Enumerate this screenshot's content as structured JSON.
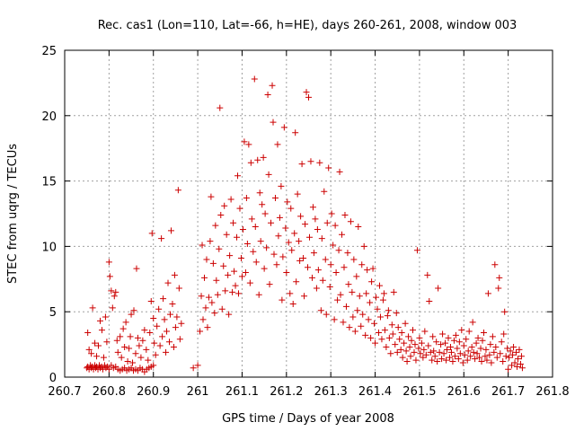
{
  "chart_data": {
    "type": "scatter",
    "title": "Rec. cas1 (Lon=110, Lat=-66, h=HE), days 260-261, 2008, window 003",
    "xlabel": "GPS time / Days of year 2008",
    "ylabel": "STEC from uqrg / TECUs",
    "xlim": [
      260.7,
      261.8
    ],
    "ylim": [
      0,
      25
    ],
    "xticks": [
      260.7,
      260.8,
      260.9,
      261.0,
      261.1,
      261.2,
      261.3,
      261.4,
      261.5,
      261.6,
      261.7,
      261.8
    ],
    "xtick_labels": [
      "260.7",
      "260.8",
      "260.9",
      "261",
      "261.1",
      "261.2",
      "261.3",
      "261.4",
      "261.5",
      "261.6",
      "261.7",
      "261.8"
    ],
    "yticks": [
      0,
      5,
      10,
      15,
      20,
      25
    ],
    "ytick_labels": [
      "0",
      "5",
      "10",
      "15",
      "20",
      "25"
    ],
    "grid": true,
    "color": "#cc0000",
    "marker": "plus",
    "points": [
      [
        260.75,
        0.7
      ],
      [
        260.752,
        0.8
      ],
      [
        260.755,
        0.6
      ],
      [
        260.758,
        0.9
      ],
      [
        260.76,
        0.7
      ],
      [
        260.762,
        0.8
      ],
      [
        260.765,
        0.6
      ],
      [
        260.768,
        0.9
      ],
      [
        260.77,
        0.7
      ],
      [
        260.772,
        0.8
      ],
      [
        260.775,
        0.6
      ],
      [
        260.778,
        0.9
      ],
      [
        260.78,
        0.7
      ],
      [
        260.783,
        0.8
      ],
      [
        260.786,
        0.6
      ],
      [
        260.79,
        0.9
      ],
      [
        260.793,
        0.7
      ],
      [
        260.796,
        0.8
      ],
      [
        260.8,
        0.6
      ],
      [
        260.805,
        0.9
      ],
      [
        260.81,
        0.7
      ],
      [
        260.815,
        0.8
      ],
      [
        260.82,
        0.6
      ],
      [
        260.825,
        0.5
      ],
      [
        260.83,
        0.6
      ],
      [
        260.835,
        0.7
      ],
      [
        260.84,
        0.5
      ],
      [
        260.845,
        0.6
      ],
      [
        260.85,
        0.7
      ],
      [
        260.855,
        0.5
      ],
      [
        260.86,
        0.6
      ],
      [
        260.865,
        0.5
      ],
      [
        260.87,
        0.7
      ],
      [
        260.875,
        0.6
      ],
      [
        260.88,
        0.4
      ],
      [
        260.885,
        0.6
      ],
      [
        260.89,
        0.7
      ],
      [
        260.895,
        0.8
      ],
      [
        260.9,
        0.9
      ],
      [
        260.752,
        3.4
      ],
      [
        260.755,
        2.1
      ],
      [
        260.76,
        1.8
      ],
      [
        260.763,
        5.3
      ],
      [
        260.768,
        2.6
      ],
      [
        260.772,
        1.6
      ],
      [
        260.776,
        2.4
      ],
      [
        260.78,
        4.3
      ],
      [
        260.784,
        3.6
      ],
      [
        260.788,
        1.5
      ],
      [
        260.792,
        4.6
      ],
      [
        260.795,
        2.7
      ],
      [
        260.8,
        8.8
      ],
      [
        260.802,
        7.7
      ],
      [
        260.805,
        6.6
      ],
      [
        260.808,
        5.3
      ],
      [
        260.812,
        6.2
      ],
      [
        260.815,
        6.5
      ],
      [
        260.818,
        2.8
      ],
      [
        260.82,
        1.9
      ],
      [
        260.825,
        3.1
      ],
      [
        260.828,
        1.5
      ],
      [
        260.832,
        3.7
      ],
      [
        260.835,
        2.3
      ],
      [
        260.838,
        4.2
      ],
      [
        260.842,
        1.2
      ],
      [
        260.845,
        2.2
      ],
      [
        260.848,
        3.1
      ],
      [
        260.85,
        4.8
      ],
      [
        260.853,
        1.1
      ],
      [
        260.856,
        5.1
      ],
      [
        260.86,
        1.8
      ],
      [
        260.862,
        8.3
      ],
      [
        260.865,
        3.0
      ],
      [
        260.868,
        2.4
      ],
      [
        260.872,
        1.5
      ],
      [
        260.876,
        2.8
      ],
      [
        260.88,
        3.6
      ],
      [
        260.884,
        2.1
      ],
      [
        260.888,
        1.3
      ],
      [
        260.892,
        3.4
      ],
      [
        260.895,
        5.8
      ],
      [
        260.897,
        11.0
      ],
      [
        260.9,
        4.5
      ],
      [
        260.902,
        2.6
      ],
      [
        260.905,
        1.7
      ],
      [
        260.908,
        3.9
      ],
      [
        260.912,
        5.2
      ],
      [
        260.915,
        2.4
      ],
      [
        260.918,
        10.6
      ],
      [
        260.92,
        3.1
      ],
      [
        260.922,
        6.0
      ],
      [
        260.925,
        4.4
      ],
      [
        260.928,
        1.9
      ],
      [
        260.93,
        3.5
      ],
      [
        260.933,
        7.2
      ],
      [
        260.936,
        2.7
      ],
      [
        260.938,
        4.8
      ],
      [
        260.94,
        11.2
      ],
      [
        260.943,
        5.6
      ],
      [
        260.946,
        2.3
      ],
      [
        260.948,
        7.8
      ],
      [
        260.95,
        3.8
      ],
      [
        260.953,
        4.6
      ],
      [
        260.956,
        14.3
      ],
      [
        260.958,
        6.8
      ],
      [
        260.96,
        2.9
      ],
      [
        260.963,
        4.1
      ],
      [
        260.99,
        0.7
      ],
      [
        261.0,
        0.9
      ],
      [
        261.005,
        3.5
      ],
      [
        261.008,
        6.2
      ],
      [
        261.01,
        10.1
      ],
      [
        261.012,
        4.4
      ],
      [
        261.015,
        7.6
      ],
      [
        261.018,
        5.3
      ],
      [
        261.02,
        9.0
      ],
      [
        261.022,
        3.8
      ],
      [
        261.025,
        6.1
      ],
      [
        261.028,
        10.4
      ],
      [
        261.03,
        13.8
      ],
      [
        261.032,
        5.7
      ],
      [
        261.035,
        8.7
      ],
      [
        261.038,
        4.9
      ],
      [
        261.04,
        11.6
      ],
      [
        261.042,
        7.4
      ],
      [
        261.045,
        6.3
      ],
      [
        261.048,
        9.8
      ],
      [
        261.05,
        20.6
      ],
      [
        261.052,
        12.4
      ],
      [
        261.055,
        5.2
      ],
      [
        261.058,
        8.5
      ],
      [
        261.06,
        13.1
      ],
      [
        261.062,
        6.6
      ],
      [
        261.065,
        10.9
      ],
      [
        261.068,
        7.8
      ],
      [
        261.07,
        4.8
      ],
      [
        261.072,
        9.3
      ],
      [
        261.075,
        13.6
      ],
      [
        261.078,
        6.5
      ],
      [
        261.08,
        11.8
      ],
      [
        261.082,
        8.1
      ],
      [
        261.085,
        7.0
      ],
      [
        261.088,
        10.7
      ],
      [
        261.09,
        15.4
      ],
      [
        261.092,
        6.4
      ],
      [
        261.095,
        12.9
      ],
      [
        261.098,
        9.1
      ],
      [
        261.1,
        7.7
      ],
      [
        261.102,
        11.3
      ],
      [
        261.105,
        18.0
      ],
      [
        261.108,
        8.0
      ],
      [
        261.11,
        13.7
      ],
      [
        261.112,
        10.2
      ],
      [
        261.115,
        17.8
      ],
      [
        261.118,
        7.2
      ],
      [
        261.12,
        16.4
      ],
      [
        261.122,
        12.1
      ],
      [
        261.125,
        9.6
      ],
      [
        261.128,
        22.8
      ],
      [
        261.13,
        11.5
      ],
      [
        261.132,
        8.8
      ],
      [
        261.135,
        16.6
      ],
      [
        261.138,
        6.3
      ],
      [
        261.14,
        14.1
      ],
      [
        261.142,
        10.4
      ],
      [
        261.145,
        13.2
      ],
      [
        261.148,
        16.8
      ],
      [
        261.15,
        8.3
      ],
      [
        261.152,
        12.5
      ],
      [
        261.155,
        9.9
      ],
      [
        261.158,
        21.6
      ],
      [
        261.16,
        15.5
      ],
      [
        261.162,
        7.1
      ],
      [
        261.165,
        11.8
      ],
      [
        261.168,
        22.3
      ],
      [
        261.17,
        19.5
      ],
      [
        261.172,
        9.4
      ],
      [
        261.175,
        13.7
      ],
      [
        261.178,
        8.6
      ],
      [
        261.18,
        17.8
      ],
      [
        261.182,
        10.8
      ],
      [
        261.185,
        12.2
      ],
      [
        261.188,
        14.6
      ],
      [
        261.19,
        5.9
      ],
      [
        261.192,
        9.2
      ],
      [
        261.195,
        19.1
      ],
      [
        261.198,
        11.4
      ],
      [
        261.2,
        8.0
      ],
      [
        261.202,
        13.4
      ],
      [
        261.205,
        10.3
      ],
      [
        261.208,
        6.4
      ],
      [
        261.21,
        12.9
      ],
      [
        261.212,
        9.7
      ],
      [
        261.215,
        5.6
      ],
      [
        261.218,
        11.0
      ],
      [
        261.22,
        18.7
      ],
      [
        261.222,
        7.3
      ],
      [
        261.225,
        14.0
      ],
      [
        261.228,
        10.4
      ],
      [
        261.23,
        8.9
      ],
      [
        261.232,
        12.3
      ],
      [
        261.235,
        16.3
      ],
      [
        261.238,
        9.1
      ],
      [
        261.24,
        6.2
      ],
      [
        261.242,
        11.7
      ],
      [
        261.245,
        21.8
      ],
      [
        261.248,
        8.4
      ],
      [
        261.25,
        21.4
      ],
      [
        261.252,
        10.7
      ],
      [
        261.255,
        16.5
      ],
      [
        261.258,
        7.6
      ],
      [
        261.26,
        13.0
      ],
      [
        261.262,
        9.5
      ],
      [
        261.265,
        12.1
      ],
      [
        261.268,
        6.8
      ],
      [
        261.27,
        11.3
      ],
      [
        261.272,
        8.2
      ],
      [
        261.275,
        16.4
      ],
      [
        261.278,
        5.1
      ],
      [
        261.28,
        10.6
      ],
      [
        261.282,
        7.4
      ],
      [
        261.285,
        14.2
      ],
      [
        261.288,
        9.0
      ],
      [
        261.29,
        4.8
      ],
      [
        261.292,
        11.8
      ],
      [
        261.295,
        16.0
      ],
      [
        261.298,
        6.9
      ],
      [
        261.3,
        8.6
      ],
      [
        261.302,
        12.5
      ],
      [
        261.305,
        10.1
      ],
      [
        261.308,
        4.4
      ],
      [
        261.31,
        11.6
      ],
      [
        261.312,
        8.0
      ],
      [
        261.315,
        5.9
      ],
      [
        261.318,
        9.7
      ],
      [
        261.32,
        15.7
      ],
      [
        261.322,
        6.3
      ],
      [
        261.325,
        10.9
      ],
      [
        261.328,
        4.2
      ],
      [
        261.33,
        8.4
      ],
      [
        261.332,
        12.4
      ],
      [
        261.335,
        5.4
      ],
      [
        261.338,
        9.5
      ],
      [
        261.34,
        7.1
      ],
      [
        261.342,
        3.8
      ],
      [
        261.345,
        11.9
      ],
      [
        261.348,
        6.5
      ],
      [
        261.35,
        4.6
      ],
      [
        261.352,
        9.0
      ],
      [
        261.355,
        3.5
      ],
      [
        261.358,
        7.7
      ],
      [
        261.36,
        5.1
      ],
      [
        261.362,
        11.5
      ],
      [
        261.365,
        6.2
      ],
      [
        261.368,
        3.9
      ],
      [
        261.37,
        8.6
      ],
      [
        261.372,
        4.8
      ],
      [
        261.375,
        10.0
      ],
      [
        261.378,
        3.2
      ],
      [
        261.38,
        6.4
      ],
      [
        261.382,
        8.2
      ],
      [
        261.385,
        4.4
      ],
      [
        261.388,
        5.7
      ],
      [
        261.39,
        3.0
      ],
      [
        261.392,
        7.3
      ],
      [
        261.395,
        8.3
      ],
      [
        261.398,
        4.1
      ],
      [
        261.4,
        2.6
      ],
      [
        261.402,
        6.1
      ],
      [
        261.405,
        5.2
      ],
      [
        261.408,
        3.4
      ],
      [
        261.41,
        7.0
      ],
      [
        261.412,
        4.6
      ],
      [
        261.415,
        2.9
      ],
      [
        261.418,
        5.9
      ],
      [
        261.42,
        6.4
      ],
      [
        261.422,
        3.6
      ],
      [
        261.425,
        2.3
      ],
      [
        261.428,
        4.7
      ],
      [
        261.43,
        5.1
      ],
      [
        261.432,
        3.0
      ],
      [
        261.435,
        1.8
      ],
      [
        261.438,
        4.0
      ],
      [
        261.44,
        3.3
      ],
      [
        261.442,
        6.5
      ],
      [
        261.445,
        2.5
      ],
      [
        261.448,
        4.9
      ],
      [
        261.45,
        1.9
      ],
      [
        261.452,
        3.8
      ],
      [
        261.455,
        2.9
      ],
      [
        261.458,
        2.1
      ],
      [
        261.46,
        3.4
      ],
      [
        261.462,
        1.5
      ],
      [
        261.465,
        2.6
      ],
      [
        261.468,
        4.1
      ],
      [
        261.47,
        2.0
      ],
      [
        261.472,
        1.2
      ],
      [
        261.475,
        3.1
      ],
      [
        261.478,
        2.3
      ],
      [
        261.48,
        1.6
      ],
      [
        261.482,
        2.8
      ],
      [
        261.485,
        3.6
      ],
      [
        261.488,
        1.9
      ],
      [
        261.49,
        2.5
      ],
      [
        261.492,
        1.3
      ],
      [
        261.495,
        9.7
      ],
      [
        261.498,
        2.2
      ],
      [
        261.5,
        3.0
      ],
      [
        261.502,
        1.8
      ],
      [
        261.505,
        2.6
      ],
      [
        261.508,
        1.5
      ],
      [
        261.51,
        2.1
      ],
      [
        261.512,
        3.5
      ],
      [
        261.515,
        1.7
      ],
      [
        261.518,
        7.8
      ],
      [
        261.52,
        2.4
      ],
      [
        261.522,
        5.8
      ],
      [
        261.525,
        1.9
      ],
      [
        261.528,
        1.3
      ],
      [
        261.53,
        3.1
      ],
      [
        261.532,
        2.0
      ],
      [
        261.535,
        1.6
      ],
      [
        261.538,
        2.7
      ],
      [
        261.54,
        1.2
      ],
      [
        261.542,
        6.8
      ],
      [
        261.545,
        1.9
      ],
      [
        261.548,
        2.5
      ],
      [
        261.55,
        1.4
      ],
      [
        261.552,
        3.3
      ],
      [
        261.555,
        1.8
      ],
      [
        261.558,
        2.6
      ],
      [
        261.56,
        1.3
      ],
      [
        261.562,
        2.1
      ],
      [
        261.565,
        3.0
      ],
      [
        261.568,
        1.5
      ],
      [
        261.57,
        2.3
      ],
      [
        261.572,
        1.9
      ],
      [
        261.575,
        1.2
      ],
      [
        261.578,
        2.8
      ],
      [
        261.58,
        1.6
      ],
      [
        261.582,
        3.2
      ],
      [
        261.585,
        2.2
      ],
      [
        261.588,
        1.4
      ],
      [
        261.59,
        2.7
      ],
      [
        261.592,
        1.8
      ],
      [
        261.595,
        3.6
      ],
      [
        261.598,
        1.1
      ],
      [
        261.6,
        2.4
      ],
      [
        261.602,
        1.7
      ],
      [
        261.605,
        2.9
      ],
      [
        261.608,
        1.3
      ],
      [
        261.61,
        2.0
      ],
      [
        261.612,
        3.5
      ],
      [
        261.615,
        1.6
      ],
      [
        261.618,
        2.3
      ],
      [
        261.62,
        4.2
      ],
      [
        261.622,
        1.9
      ],
      [
        261.625,
        1.4
      ],
      [
        261.628,
        2.6
      ],
      [
        261.63,
        1.8
      ],
      [
        261.632,
        3.0
      ],
      [
        261.635,
        1.5
      ],
      [
        261.638,
        2.2
      ],
      [
        261.64,
        1.2
      ],
      [
        261.642,
        2.8
      ],
      [
        261.645,
        3.4
      ],
      [
        261.648,
        1.6
      ],
      [
        261.65,
        2.1
      ],
      [
        261.652,
        1.3
      ],
      [
        261.655,
        6.4
      ],
      [
        261.658,
        1.7
      ],
      [
        261.66,
        2.5
      ],
      [
        261.662,
        1.1
      ],
      [
        261.665,
        3.1
      ],
      [
        261.668,
        1.9
      ],
      [
        261.67,
        8.6
      ],
      [
        261.672,
        2.3
      ],
      [
        261.675,
        1.5
      ],
      [
        261.678,
        6.8
      ],
      [
        261.68,
        7.6
      ],
      [
        261.682,
        1.8
      ],
      [
        261.685,
        2.7
      ],
      [
        261.688,
        1.2
      ],
      [
        261.69,
        3.3
      ],
      [
        261.692,
        5.0
      ],
      [
        261.695,
        1.6
      ],
      [
        261.698,
        2.2
      ],
      [
        261.7,
        0.6
      ],
      [
        261.702,
        1.5
      ],
      [
        261.705,
        2.0
      ],
      [
        261.708,
        0.9
      ],
      [
        261.71,
        1.7
      ],
      [
        261.712,
        2.3
      ],
      [
        261.715,
        1.1
      ],
      [
        261.718,
        1.9
      ],
      [
        261.72,
        0.8
      ],
      [
        261.722,
        1.4
      ],
      [
        261.725,
        2.1
      ],
      [
        261.728,
        1.0
      ],
      [
        261.73,
        1.6
      ],
      [
        261.732,
        0.7
      ]
    ]
  }
}
